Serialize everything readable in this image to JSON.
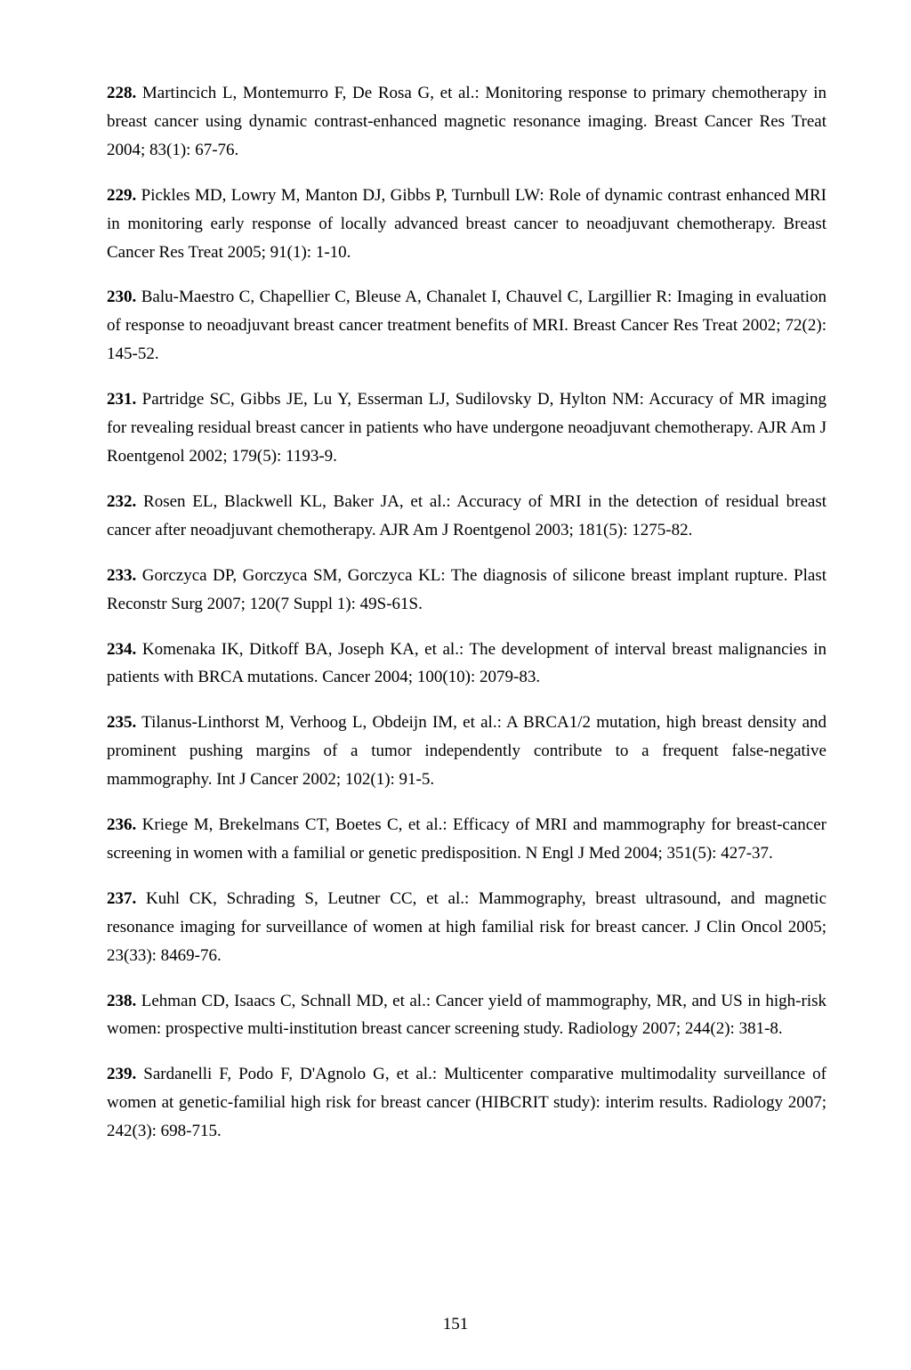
{
  "page_number": "151",
  "references": [
    {
      "num": "228.",
      "text": " Martincich L, Montemurro F, De Rosa G, et al.: Monitoring response to primary chemotherapy in breast cancer using dynamic contrast-enhanced magnetic resonance imaging. Breast Cancer Res Treat 2004; 83(1): 67-76."
    },
    {
      "num": "229.",
      "text": " Pickles MD, Lowry M, Manton DJ, Gibbs P, Turnbull LW: Role of dynamic contrast enhanced MRI in monitoring early response of locally advanced breast cancer to neoadjuvant chemotherapy. Breast Cancer Res Treat 2005; 91(1): 1-10."
    },
    {
      "num": "230.",
      "text": " Balu-Maestro C, Chapellier C, Bleuse A, Chanalet I, Chauvel C, Largillier R: Imaging in evaluation of response to neoadjuvant breast cancer treatment benefits of MRI. Breast Cancer Res Treat 2002; 72(2): 145-52."
    },
    {
      "num": "231.",
      "text": " Partridge SC, Gibbs JE, Lu Y, Esserman LJ, Sudilovsky D, Hylton NM: Accuracy of MR imaging for revealing residual breast cancer in patients who have undergone neoadjuvant chemotherapy. AJR Am J Roentgenol 2002; 179(5): 1193-9."
    },
    {
      "num": "232.",
      "text": " Rosen EL, Blackwell KL, Baker JA, et al.: Accuracy of MRI in the detection of residual breast cancer after neoadjuvant chemotherapy. AJR Am J Roentgenol 2003; 181(5): 1275-82."
    },
    {
      "num": "233.",
      "text": " Gorczyca DP, Gorczyca SM, Gorczyca KL: The diagnosis of silicone breast implant rupture. Plast Reconstr Surg 2007; 120(7 Suppl 1): 49S-61S."
    },
    {
      "num": "234.",
      "text": " Komenaka IK, Ditkoff BA, Joseph KA, et al.: The development of interval breast malignancies in patients with BRCA mutations. Cancer 2004; 100(10): 2079-83."
    },
    {
      "num": "235.",
      "text": " Tilanus-Linthorst M, Verhoog L, Obdeijn IM, et al.: A BRCA1/2 mutation, high breast density and prominent pushing margins of a tumor independently contribute to a frequent false-negative mammography. Int J Cancer 2002; 102(1): 91-5."
    },
    {
      "num": "236.",
      "text": " Kriege M, Brekelmans CT, Boetes C, et al.: Efficacy of MRI and mammography for breast-cancer screening in women with a familial or genetic predisposition. N Engl J Med 2004; 351(5): 427-37."
    },
    {
      "num": "237.",
      "text": " Kuhl CK, Schrading S, Leutner CC, et al.: Mammography, breast ultrasound, and magnetic resonance imaging for surveillance of women at high familial risk for breast cancer. J Clin Oncol 2005; 23(33): 8469-76."
    },
    {
      "num": "238.",
      "text": " Lehman CD, Isaacs C, Schnall MD, et al.: Cancer yield of mammography, MR, and US in high-risk women: prospective multi-institution breast cancer screening study. Radiology 2007; 244(2): 381-8."
    },
    {
      "num": "239.",
      "text": " Sardanelli F, Podo F, D'Agnolo G, et al.: Multicenter comparative multimodality surveillance of women at genetic-familial high risk for breast cancer (HIBCRIT study): interim results. Radiology 2007; 242(3): 698-715."
    }
  ]
}
